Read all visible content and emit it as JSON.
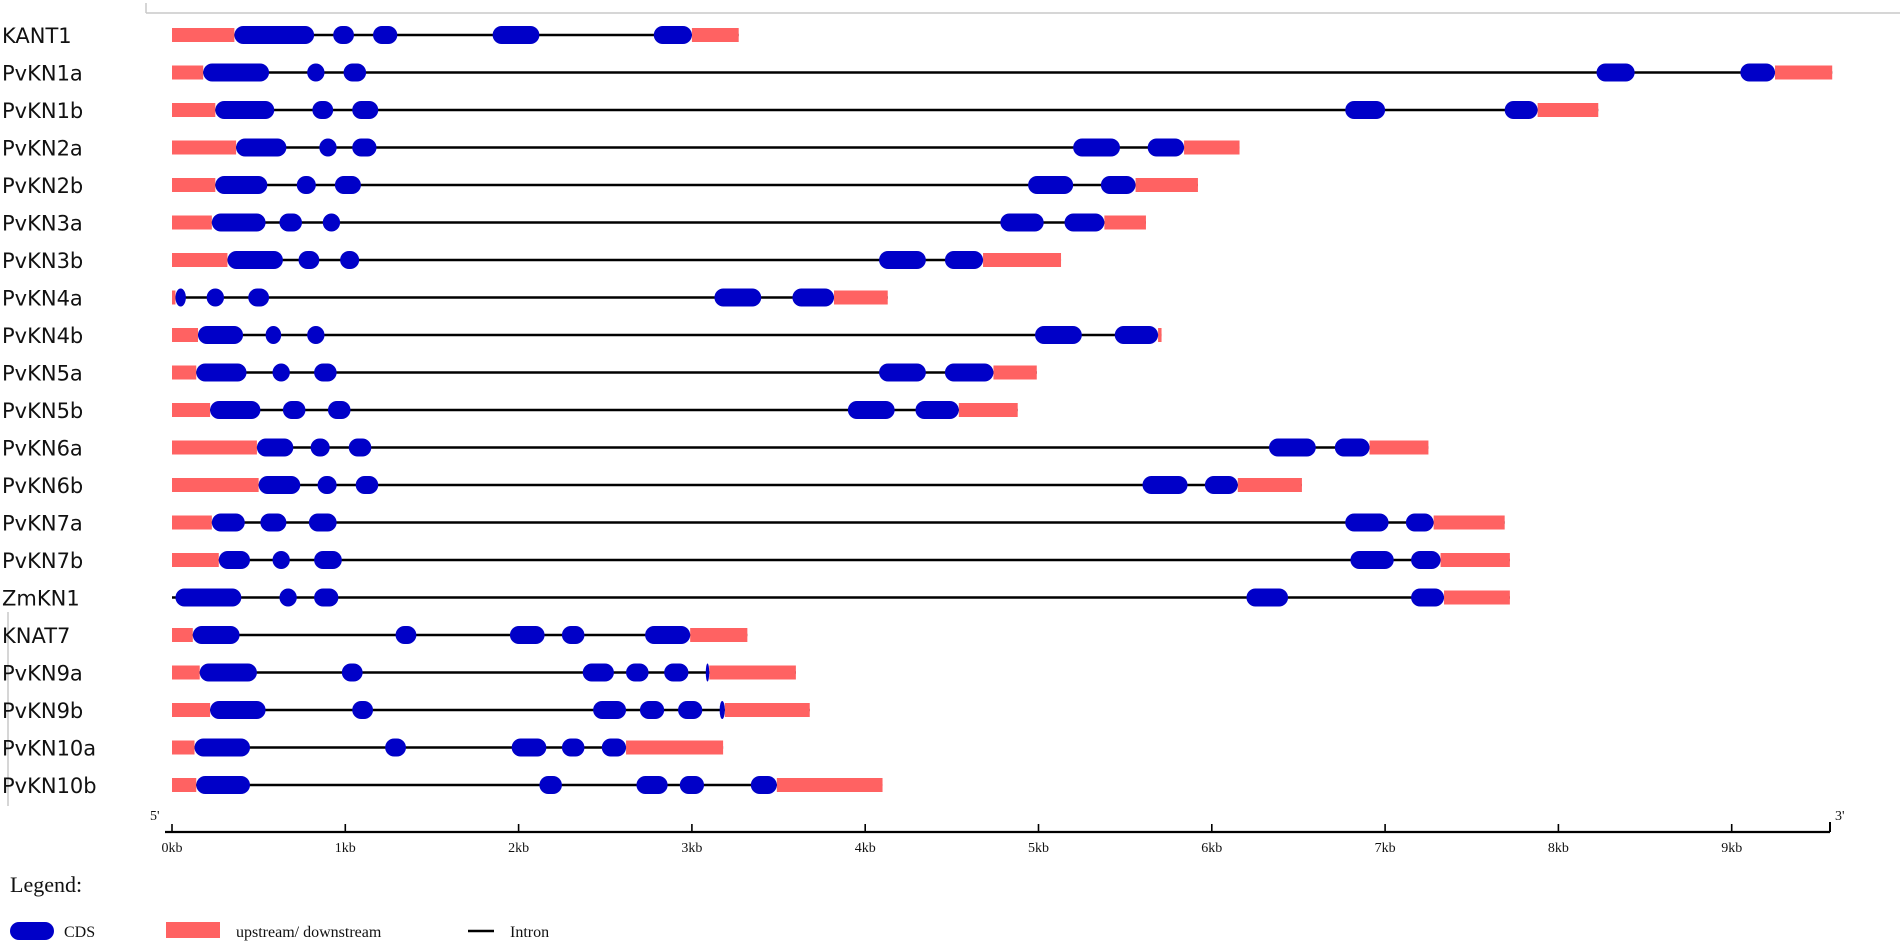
{
  "chart_data": {
    "type": "gene-structure",
    "colors": {
      "cds": "#0000c8",
      "utr": "#ff6262",
      "intron": "#000000",
      "axis": "#000000"
    },
    "axis": {
      "min_kb": 0,
      "max_kb": 9.6,
      "ticks": [
        "0kb",
        "1kb",
        "2kb",
        "3kb",
        "4kb",
        "5kb",
        "6kb",
        "7kb",
        "8kb",
        "9kb"
      ],
      "end5": "5'",
      "end3": "3'"
    },
    "genes": [
      {
        "name": "KANT1",
        "utr5": [
          0,
          0.36
        ],
        "utr3": [
          3.0,
          3.27
        ],
        "cds": [
          [
            0.36,
            0.82
          ],
          [
            0.93,
            1.05
          ],
          [
            1.16,
            1.3
          ],
          [
            1.85,
            2.12
          ],
          [
            2.78,
            3.0
          ]
        ]
      },
      {
        "name": "PvKN1a",
        "utr5": [
          0,
          0.18
        ],
        "utr3": [
          9.25,
          9.58
        ],
        "cds": [
          [
            0.18,
            0.56
          ],
          [
            0.78,
            0.88
          ],
          [
            0.99,
            1.12
          ],
          [
            8.22,
            8.44
          ],
          [
            9.05,
            9.25
          ]
        ]
      },
      {
        "name": "PvKN1b",
        "utr5": [
          0,
          0.25
        ],
        "utr3": [
          7.88,
          8.23
        ],
        "cds": [
          [
            0.25,
            0.59
          ],
          [
            0.81,
            0.93
          ],
          [
            1.04,
            1.19
          ],
          [
            6.77,
            7.0
          ],
          [
            7.69,
            7.88
          ]
        ]
      },
      {
        "name": "PvKN2a",
        "utr5": [
          0,
          0.37
        ],
        "utr3": [
          5.84,
          6.16
        ],
        "cds": [
          [
            0.37,
            0.66
          ],
          [
            0.85,
            0.95
          ],
          [
            1.04,
            1.18
          ],
          [
            5.2,
            5.47
          ],
          [
            5.63,
            5.84
          ]
        ]
      },
      {
        "name": "PvKN2b",
        "utr5": [
          0,
          0.25
        ],
        "utr3": [
          5.56,
          5.92
        ],
        "cds": [
          [
            0.25,
            0.55
          ],
          [
            0.72,
            0.83
          ],
          [
            0.94,
            1.09
          ],
          [
            4.94,
            5.2
          ],
          [
            5.36,
            5.56
          ]
        ]
      },
      {
        "name": "PvKN3a",
        "utr5": [
          0,
          0.23
        ],
        "utr3": [
          5.38,
          5.62
        ],
        "cds": [
          [
            0.23,
            0.54
          ],
          [
            0.62,
            0.75
          ],
          [
            0.87,
            0.97
          ],
          [
            4.78,
            5.03
          ],
          [
            5.15,
            5.38
          ]
        ]
      },
      {
        "name": "PvKN3b",
        "utr5": [
          0,
          0.32
        ],
        "utr3": [
          4.68,
          5.13
        ],
        "cds": [
          [
            0.32,
            0.64
          ],
          [
            0.73,
            0.85
          ],
          [
            0.97,
            1.08
          ],
          [
            4.08,
            4.35
          ],
          [
            4.46,
            4.68
          ]
        ]
      },
      {
        "name": "PvKN4a",
        "utr5": [
          0,
          0.02
        ],
        "utr3": [
          3.82,
          4.13
        ],
        "cds": [
          [
            0.02,
            0.08
          ],
          [
            0.2,
            0.3
          ],
          [
            0.44,
            0.56
          ],
          [
            3.13,
            3.4
          ],
          [
            3.58,
            3.82
          ]
        ]
      },
      {
        "name": "PvKN4b",
        "utr5": [
          0,
          0.15
        ],
        "utr3": [
          5.69,
          5.71
        ],
        "cds": [
          [
            0.15,
            0.41
          ],
          [
            0.54,
            0.63
          ],
          [
            0.78,
            0.88
          ],
          [
            4.98,
            5.25
          ],
          [
            5.44,
            5.69
          ]
        ]
      },
      {
        "name": "PvKN5a",
        "utr5": [
          0,
          0.14
        ],
        "utr3": [
          4.74,
          4.99
        ],
        "cds": [
          [
            0.14,
            0.43
          ],
          [
            0.58,
            0.68
          ],
          [
            0.82,
            0.95
          ],
          [
            4.08,
            4.35
          ],
          [
            4.46,
            4.74
          ]
        ]
      },
      {
        "name": "PvKN5b",
        "utr5": [
          0,
          0.22
        ],
        "utr3": [
          4.54,
          4.88
        ],
        "cds": [
          [
            0.22,
            0.51
          ],
          [
            0.64,
            0.77
          ],
          [
            0.9,
            1.03
          ],
          [
            3.9,
            4.17
          ],
          [
            4.29,
            4.54
          ]
        ]
      },
      {
        "name": "PvKN6a",
        "utr5": [
          0,
          0.49
        ],
        "utr3": [
          6.91,
          7.25
        ],
        "cds": [
          [
            0.49,
            0.7
          ],
          [
            0.8,
            0.91
          ],
          [
            1.02,
            1.15
          ],
          [
            6.33,
            6.6
          ],
          [
            6.71,
            6.91
          ]
        ]
      },
      {
        "name": "PvKN6b",
        "utr5": [
          0,
          0.5
        ],
        "utr3": [
          6.15,
          6.52
        ],
        "cds": [
          [
            0.5,
            0.74
          ],
          [
            0.84,
            0.95
          ],
          [
            1.06,
            1.19
          ],
          [
            5.6,
            5.86
          ],
          [
            5.96,
            6.15
          ]
        ]
      },
      {
        "name": "PvKN7a",
        "utr5": [
          0,
          0.23
        ],
        "utr3": [
          7.28,
          7.69
        ],
        "cds": [
          [
            0.23,
            0.42
          ],
          [
            0.51,
            0.66
          ],
          [
            0.79,
            0.95
          ],
          [
            6.77,
            7.02
          ],
          [
            7.12,
            7.28
          ]
        ]
      },
      {
        "name": "PvKN7b",
        "utr5": [
          0,
          0.27
        ],
        "utr3": [
          7.32,
          7.72
        ],
        "cds": [
          [
            0.27,
            0.45
          ],
          [
            0.58,
            0.68
          ],
          [
            0.82,
            0.98
          ],
          [
            6.8,
            7.05
          ],
          [
            7.15,
            7.32
          ]
        ]
      },
      {
        "name": "ZmKN1",
        "utr5": [
          0,
          0
        ],
        "utr3": [
          7.34,
          7.72
        ],
        "cds": [
          [
            0.02,
            0.4
          ],
          [
            0.62,
            0.72
          ],
          [
            0.82,
            0.96
          ],
          [
            6.2,
            6.44
          ],
          [
            7.15,
            7.34
          ]
        ]
      },
      {
        "name": "KNAT7",
        "utr5": [
          0,
          0.12
        ],
        "utr3": [
          2.99,
          3.32
        ],
        "cds": [
          [
            0.12,
            0.39
          ],
          [
            1.29,
            1.41
          ],
          [
            1.95,
            2.15
          ],
          [
            2.25,
            2.38
          ],
          [
            2.73,
            2.99
          ]
        ]
      },
      {
        "name": "PvKN9a",
        "utr5": [
          0,
          0.16
        ],
        "utr3": [
          3.1,
          3.6
        ],
        "cds": [
          [
            0.16,
            0.49
          ],
          [
            0.98,
            1.1
          ],
          [
            2.37,
            2.55
          ],
          [
            2.62,
            2.75
          ],
          [
            2.84,
            2.98
          ],
          [
            3.08,
            3.1
          ]
        ]
      },
      {
        "name": "PvKN9b",
        "utr5": [
          0,
          0.22
        ],
        "utr3": [
          3.19,
          3.68
        ],
        "cds": [
          [
            0.22,
            0.54
          ],
          [
            1.04,
            1.16
          ],
          [
            2.43,
            2.62
          ],
          [
            2.7,
            2.84
          ],
          [
            2.92,
            3.06
          ],
          [
            3.16,
            3.19
          ]
        ]
      },
      {
        "name": "PvKN10a",
        "utr5": [
          0,
          0.13
        ],
        "utr3": [
          2.62,
          3.18
        ],
        "cds": [
          [
            0.13,
            0.45
          ],
          [
            1.23,
            1.35
          ],
          [
            1.96,
            2.16
          ],
          [
            2.25,
            2.38
          ],
          [
            2.48,
            2.62
          ]
        ]
      },
      {
        "name": "PvKN10b",
        "utr5": [
          0,
          0.14
        ],
        "utr3": [
          3.49,
          4.1
        ],
        "cds": [
          [
            0.14,
            0.45
          ],
          [
            2.12,
            2.25
          ],
          [
            2.68,
            2.86
          ],
          [
            2.93,
            3.07
          ],
          [
            3.34,
            3.49
          ]
        ]
      }
    ]
  },
  "legend": {
    "title": "Legend:",
    "items": [
      {
        "kind": "cds",
        "label": "CDS"
      },
      {
        "kind": "utr",
        "label": "upstream/ downstream"
      },
      {
        "kind": "intron",
        "label": "Intron"
      }
    ]
  }
}
